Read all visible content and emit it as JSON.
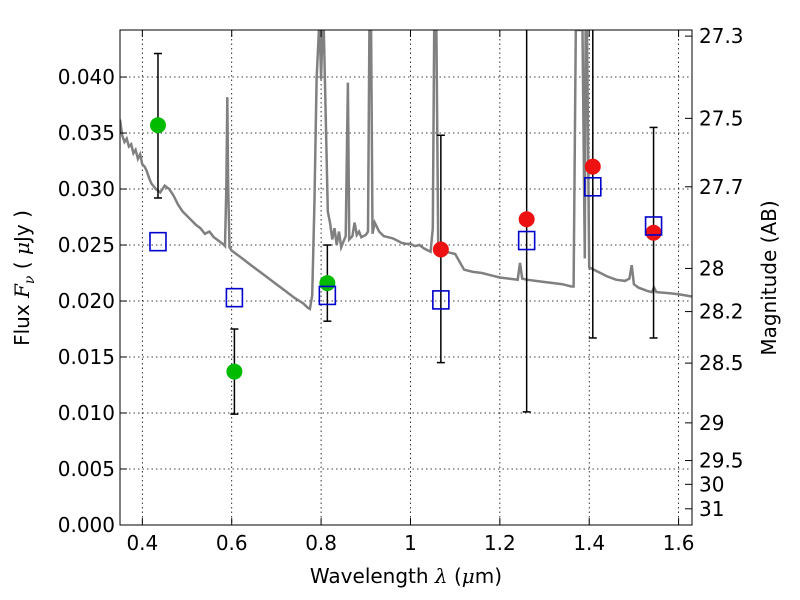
{
  "chart_data": {
    "type": "scatter",
    "xlabel": "Wavelength  λ (μm)",
    "ylabel": "Flux  F_ν  ( μJy )",
    "ylabel_right": "Magnitude (AB)",
    "xlim": [
      0.35,
      1.63
    ],
    "ylim": [
      0.0,
      0.0442
    ],
    "grid": true,
    "x_ticks": [
      "0.4",
      "0.6",
      "0.8",
      "1",
      "1.2",
      "1.4",
      "1.6"
    ],
    "x_tick_values": [
      0.4,
      0.6,
      0.8,
      1.0,
      1.2,
      1.4,
      1.6
    ],
    "y_ticks": [
      "0.000",
      "0.005",
      "0.010",
      "0.015",
      "0.020",
      "0.025",
      "0.030",
      "0.035",
      "0.040"
    ],
    "y_tick_values": [
      0.0,
      0.005,
      0.01,
      0.015,
      0.02,
      0.025,
      0.03,
      0.035,
      0.04
    ],
    "mag_ticks": [
      "27.3",
      "27.5",
      "27.7",
      "28",
      "28.2",
      "28.5",
      "29",
      "29.5",
      "30",
      "31"
    ],
    "mag_tick_values": [
      27.3,
      27.5,
      27.7,
      28.0,
      28.2,
      28.5,
      29.0,
      29.5,
      30.0,
      31.0
    ],
    "series": [
      {
        "marker": "circle",
        "color": "#00bb00",
        "points": [
          {
            "x": 0.435,
            "y": 0.0357,
            "err_lo": 0.0292,
            "err_hi": 0.0421
          },
          {
            "x": 0.606,
            "y": 0.0137,
            "err_lo": 0.0099,
            "err_hi": 0.0175
          },
          {
            "x": 0.814,
            "y": 0.0216,
            "err_lo": 0.0182,
            "err_hi": 0.025
          }
        ]
      },
      {
        "marker": "circle",
        "color": "#ee1111",
        "points": [
          {
            "x": 1.068,
            "y": 0.0246,
            "err_lo": 0.0145,
            "err_hi": 0.0348
          },
          {
            "x": 1.26,
            "y": 0.0273,
            "err_lo": 0.0101,
            "err_hi": 0.0442
          },
          {
            "x": 1.408,
            "y": 0.032,
            "err_lo": 0.0167,
            "err_hi": 0.0442
          },
          {
            "x": 1.544,
            "y": 0.0261,
            "err_lo": 0.0167,
            "err_hi": 0.0355
          }
        ]
      },
      {
        "marker": "square",
        "color": "#0000cc",
        "points": [
          {
            "x": 0.435,
            "y": 0.0253
          },
          {
            "x": 0.606,
            "y": 0.0203
          },
          {
            "x": 0.814,
            "y": 0.0205
          },
          {
            "x": 1.068,
            "y": 0.0201
          },
          {
            "x": 1.26,
            "y": 0.0254
          },
          {
            "x": 1.408,
            "y": 0.0302
          },
          {
            "x": 1.544,
            "y": 0.0267
          }
        ]
      }
    ],
    "model_spectrum": {
      "color": "#808080",
      "points": [
        [
          0.35,
          0.0362
        ],
        [
          0.355,
          0.0348
        ],
        [
          0.36,
          0.0342
        ],
        [
          0.365,
          0.0345
        ],
        [
          0.37,
          0.0338
        ],
        [
          0.375,
          0.034
        ],
        [
          0.38,
          0.0332
        ],
        [
          0.385,
          0.0335
        ],
        [
          0.39,
          0.0327
        ],
        [
          0.395,
          0.0331
        ],
        [
          0.4,
          0.0322
        ],
        [
          0.405,
          0.032
        ],
        [
          0.41,
          0.0316
        ],
        [
          0.415,
          0.031
        ],
        [
          0.42,
          0.0305
        ],
        [
          0.43,
          0.03
        ],
        [
          0.44,
          0.0297
        ],
        [
          0.45,
          0.0303
        ],
        [
          0.46,
          0.03
        ],
        [
          0.47,
          0.0294
        ],
        [
          0.48,
          0.0286
        ],
        [
          0.49,
          0.028
        ],
        [
          0.5,
          0.0276
        ],
        [
          0.51,
          0.0272
        ],
        [
          0.52,
          0.0268
        ],
        [
          0.53,
          0.0265
        ],
        [
          0.54,
          0.026
        ],
        [
          0.55,
          0.0262
        ],
        [
          0.56,
          0.0257
        ],
        [
          0.57,
          0.0254
        ],
        [
          0.58,
          0.0251
        ],
        [
          0.585,
          0.0249
        ],
        [
          0.588,
          0.0305
        ],
        [
          0.59,
          0.0382
        ],
        [
          0.592,
          0.0305
        ],
        [
          0.595,
          0.0248
        ],
        [
          0.6,
          0.0245
        ],
        [
          0.62,
          0.0239
        ],
        [
          0.64,
          0.0233
        ],
        [
          0.66,
          0.0227
        ],
        [
          0.68,
          0.0221
        ],
        [
          0.7,
          0.0215
        ],
        [
          0.72,
          0.0209
        ],
        [
          0.74,
          0.0203
        ],
        [
          0.76,
          0.0198
        ],
        [
          0.77,
          0.0194
        ],
        [
          0.775,
          0.0193
        ],
        [
          0.78,
          0.0205
        ],
        [
          0.785,
          0.0286
        ],
        [
          0.79,
          0.0398
        ],
        [
          0.795,
          0.0442
        ],
        [
          0.797,
          0.0442
        ],
        [
          0.8,
          0.0398
        ],
        [
          0.803,
          0.0442
        ],
        [
          0.806,
          0.0442
        ],
        [
          0.81,
          0.037
        ],
        [
          0.815,
          0.028
        ],
        [
          0.82,
          0.027
        ],
        [
          0.825,
          0.0255
        ],
        [
          0.83,
          0.0265
        ],
        [
          0.835,
          0.025
        ],
        [
          0.84,
          0.0262
        ],
        [
          0.845,
          0.0248
        ],
        [
          0.85,
          0.0253
        ],
        [
          0.855,
          0.0258
        ],
        [
          0.86,
          0.0395
        ],
        [
          0.863,
          0.0255
        ],
        [
          0.87,
          0.0258
        ],
        [
          0.875,
          0.027
        ],
        [
          0.88,
          0.0259
        ],
        [
          0.885,
          0.0262
        ],
        [
          0.89,
          0.0257
        ],
        [
          0.9,
          0.0259
        ],
        [
          0.905,
          0.0262
        ],
        [
          0.908,
          0.0442
        ],
        [
          0.912,
          0.0442
        ],
        [
          0.915,
          0.026
        ],
        [
          0.92,
          0.027
        ],
        [
          0.93,
          0.0262
        ],
        [
          0.94,
          0.0258
        ],
        [
          0.95,
          0.0257
        ],
        [
          0.96,
          0.0256
        ],
        [
          0.97,
          0.0254
        ],
        [
          0.98,
          0.0252
        ],
        [
          0.99,
          0.0251
        ],
        [
          1.0,
          0.0251
        ],
        [
          1.01,
          0.0249
        ],
        [
          1.02,
          0.025
        ],
        [
          1.03,
          0.0247
        ],
        [
          1.04,
          0.0245
        ],
        [
          1.045,
          0.0244
        ],
        [
          1.05,
          0.0265
        ],
        [
          1.053,
          0.0442
        ],
        [
          1.058,
          0.0442
        ],
        [
          1.062,
          0.0252
        ],
        [
          1.07,
          0.0246
        ],
        [
          1.08,
          0.0244
        ],
        [
          1.09,
          0.0243
        ],
        [
          1.1,
          0.0242
        ],
        [
          1.12,
          0.0228
        ],
        [
          1.14,
          0.0226
        ],
        [
          1.16,
          0.0225
        ],
        [
          1.18,
          0.0223
        ],
        [
          1.2,
          0.0221
        ],
        [
          1.22,
          0.022
        ],
        [
          1.24,
          0.0219
        ],
        [
          1.245,
          0.0234
        ],
        [
          1.25,
          0.022
        ],
        [
          1.26,
          0.0219
        ],
        [
          1.28,
          0.0218
        ],
        [
          1.3,
          0.0217
        ],
        [
          1.32,
          0.0216
        ],
        [
          1.34,
          0.0215
        ],
        [
          1.36,
          0.0213
        ],
        [
          1.365,
          0.0213
        ],
        [
          1.37,
          0.0442
        ],
        [
          1.385,
          0.0442
        ],
        [
          1.39,
          0.0238
        ],
        [
          1.392,
          0.0442
        ],
        [
          1.395,
          0.0442
        ],
        [
          1.4,
          0.023
        ],
        [
          1.42,
          0.0226
        ],
        [
          1.44,
          0.0222
        ],
        [
          1.46,
          0.0219
        ],
        [
          1.48,
          0.0218
        ],
        [
          1.49,
          0.022
        ],
        [
          1.495,
          0.0232
        ],
        [
          1.5,
          0.0215
        ],
        [
          1.51,
          0.0212
        ],
        [
          1.53,
          0.0209
        ],
        [
          1.54,
          0.0208
        ],
        [
          1.545,
          0.0212
        ],
        [
          1.55,
          0.0208
        ],
        [
          1.58,
          0.0207
        ],
        [
          1.6,
          0.0206
        ],
        [
          1.63,
          0.0204
        ]
      ]
    }
  }
}
